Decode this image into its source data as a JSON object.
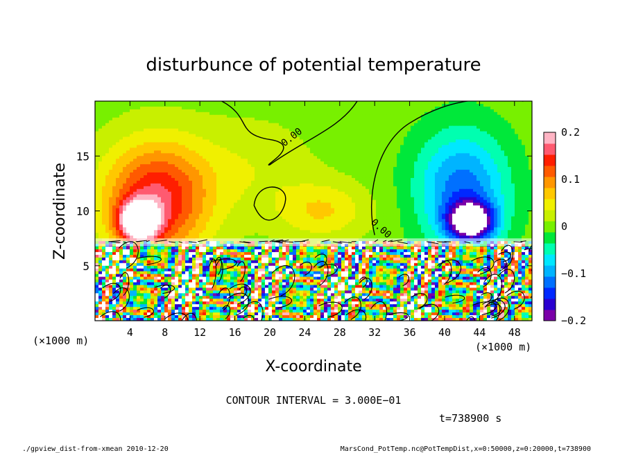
{
  "chart_data": {
    "type": "heatmap",
    "title": "disturbunce of potential temperature",
    "xlabel": "X-coordinate",
    "ylabel": "Z-coordinate",
    "x_unit_left": "(×1000 m)",
    "x_unit_right": "(×1000 m)",
    "xlim": [
      0,
      50
    ],
    "ylim": [
      0,
      20
    ],
    "x_ticks": [
      4,
      8,
      12,
      16,
      20,
      24,
      28,
      32,
      36,
      40,
      44,
      48
    ],
    "y_ticks": [
      5,
      10,
      15
    ],
    "colorbar": {
      "min": -0.2,
      "max": 0.2,
      "ticks": [
        {
          "value": 0.2,
          "label": "0.2"
        },
        {
          "value": 0.1,
          "label": "0.1"
        },
        {
          "value": 0,
          "label": "0"
        },
        {
          "value": -0.1,
          "label": "−0.1"
        },
        {
          "value": -0.2,
          "label": "−0.2"
        }
      ],
      "colors": [
        "#7a00a8",
        "#2a00d0",
        "#0028ff",
        "#0070ff",
        "#00b4ff",
        "#00e8ff",
        "#00ffb0",
        "#00e83a",
        "#78f000",
        "#c8f000",
        "#f0f000",
        "#ffc800",
        "#ff9600",
        "#ff5a00",
        "#ff1e00",
        "#ff5a70",
        "#ffb4c4"
      ]
    },
    "contour_labels": [
      "0.00",
      "0.00"
    ],
    "contour_interval_text": "CONTOUR INTERVAL = 3.000E−01",
    "time_text": "t=738900 s",
    "footer_left": "./gpview_dist-from-xmean  2010-12-20",
    "footer_right": "MarsCond_PotTemp.nc@PotTempDist,x=0:50000,z=0:20000,t=738900",
    "blobs": [
      {
        "x": 7,
        "z": 11,
        "rx": 7,
        "rz": 6,
        "value": 0.16
      },
      {
        "x": 5,
        "z": 9,
        "rx": 2.5,
        "rz": 2,
        "value": 0.22
      },
      {
        "x": 18,
        "z": 14,
        "rx": 8,
        "rz": 5,
        "value": 0.03
      },
      {
        "x": 42,
        "z": 12,
        "rx": 6,
        "rz": 6,
        "value": -0.12
      },
      {
        "x": 43,
        "z": 9,
        "rx": 3,
        "rz": 2,
        "value": -0.22
      },
      {
        "x": 26,
        "z": 10,
        "rx": 6,
        "rz": 3,
        "value": 0.06
      }
    ]
  }
}
